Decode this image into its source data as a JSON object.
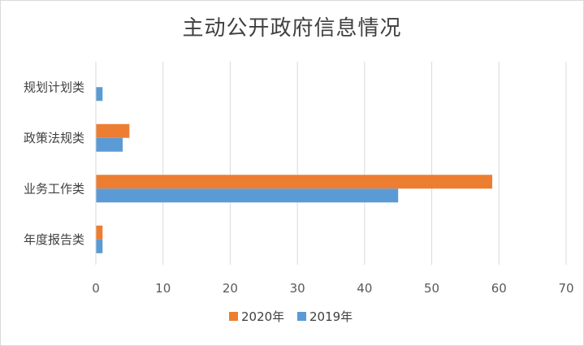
{
  "chart_data": {
    "type": "bar",
    "orientation": "horizontal",
    "title": "主动公开政府信息情况",
    "categories": [
      "年度报告类",
      "业务工作类",
      "政策法规类",
      "规划计划类"
    ],
    "series": [
      {
        "name": "2020年",
        "color": "#ED7D31",
        "values": [
          1,
          59,
          5,
          0
        ]
      },
      {
        "name": "2019年",
        "color": "#5B9BD5",
        "values": [
          1,
          45,
          4,
          1
        ]
      }
    ],
    "xlim": [
      0,
      70
    ],
    "xticks": [
      0,
      10,
      20,
      30,
      40,
      50,
      60,
      70
    ],
    "grid": true,
    "legend": "bottom"
  }
}
